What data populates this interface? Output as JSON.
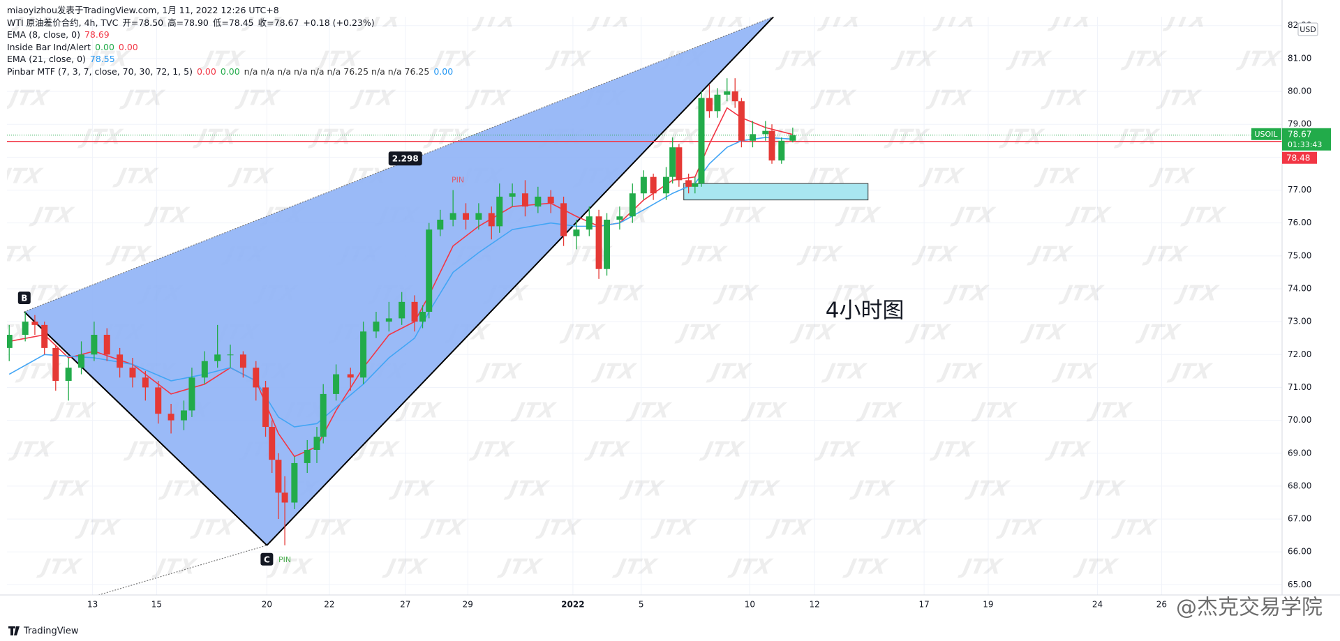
{
  "header": {
    "source": "miaoyizhou发表于TradingView.com, 1月 11, 2022 12:26 UTC+8",
    "symbol": "WTI 原油差价合约, 4h, TVC",
    "ohlc": [
      "开=78.50",
      "高=78.90",
      "低=78.45",
      "收=78.67",
      "+0.18 (+0.23%)"
    ]
  },
  "indicators": [
    {
      "label": "EMA (8, close, 0)",
      "values": [
        {
          "text": "78.69",
          "color": "#f23645"
        }
      ]
    },
    {
      "label": "Inside Bar Ind/Alert",
      "values": [
        {
          "text": "0.00",
          "color": "#22ab4a"
        },
        {
          "text": "0.00",
          "color": "#f23645"
        }
      ]
    },
    {
      "label": "EMA (21, close, 0)",
      "values": [
        {
          "text": "78.55",
          "color": "#2196f3"
        }
      ]
    },
    {
      "label": "Pinbar MTF (7, 3, 7, close, 70, 30, 72, 1, 5)",
      "values": [
        {
          "text": "0.00",
          "color": "#f23645"
        },
        {
          "text": "0.00",
          "color": "#22ab4a"
        },
        {
          "text": "n/a n/a n/a n/a n/a n/a 76.25 n/a n/a 76.25",
          "color": "#333333"
        },
        {
          "text": "0.00",
          "color": "#2196f3"
        }
      ]
    }
  ],
  "chart_data": {
    "type": "candlestick",
    "up_color": "#22ab4a",
    "down_color": "#e53935",
    "x": [
      -2.6,
      -2.1,
      -1.8,
      -1.5,
      -1.15,
      -0.75,
      -0.35,
      0.05,
      0.45,
      0.85,
      1.25,
      1.65,
      2.05,
      2.45,
      2.85,
      3.1,
      3.5,
      3.9,
      4.3,
      4.7,
      5.1,
      5.4,
      5.6,
      5.8,
      6.0,
      6.3,
      6.7,
      7.0,
      7.2,
      7.6,
      8.05,
      8.45,
      8.85,
      9.25,
      9.65,
      10.05,
      10.3,
      10.5,
      10.85,
      11.25,
      11.65,
      12.05,
      12.45,
      12.7,
      13.1,
      13.5,
      13.9,
      14.3,
      14.7,
      15.1,
      15.5,
      15.8,
      16.05,
      16.45,
      16.85,
      17.2,
      17.5,
      17.9,
      18.1,
      18.3,
      18.6,
      18.8,
      19.0,
      19.25,
      19.5,
      19.8,
      20.05,
      20.25,
      20.6,
      21.0,
      21.2,
      21.5,
      21.85
    ],
    "open": [
      72.2,
      72.6,
      73.0,
      72.9,
      72.2,
      71.2,
      71.6,
      72.0,
      72.6,
      72.0,
      71.6,
      71.3,
      71.0,
      70.2,
      70.0,
      70.3,
      71.3,
      71.8,
      72.0,
      72.0,
      71.6,
      71.0,
      69.8,
      68.8,
      67.8,
      67.5,
      68.7,
      69.1,
      69.5,
      70.8,
      71.4,
      71.3,
      72.7,
      73.0,
      73.1,
      73.6,
      73.0,
      73.3,
      75.8,
      76.1,
      76.3,
      76.1,
      76.3,
      75.9,
      76.8,
      76.9,
      76.5,
      76.8,
      76.6,
      75.6,
      75.8,
      76.2,
      74.6,
      76.1,
      76.2,
      76.9,
      77.4,
      76.9,
      77.4,
      78.3,
      77.3,
      77.1,
      77.2,
      79.8,
      79.4,
      79.9,
      80.0,
      79.7,
      78.5,
      78.7,
      78.8,
      77.9,
      78.5
    ],
    "high": [
      72.9,
      73.3,
      73.2,
      73.0,
      72.3,
      71.9,
      72.4,
      73.0,
      72.8,
      72.2,
      71.9,
      71.5,
      71.2,
      70.5,
      70.6,
      71.6,
      72.1,
      72.9,
      72.3,
      72.1,
      71.8,
      71.2,
      70.0,
      69.0,
      68.3,
      68.9,
      69.4,
      69.8,
      71.1,
      71.7,
      71.6,
      73.0,
      73.3,
      73.6,
      73.9,
      73.8,
      73.5,
      76.0,
      76.4,
      77.0,
      76.6,
      76.6,
      76.5,
      77.2,
      77.2,
      77.3,
      77.1,
      77.0,
      76.8,
      76.1,
      76.5,
      76.4,
      76.3,
      76.5,
      77.2,
      77.6,
      77.5,
      77.7,
      78.6,
      78.4,
      77.5,
      77.4,
      80.0,
      80.2,
      80.1,
      80.4,
      80.4,
      79.8,
      79.1,
      79.1,
      79.0,
      78.6,
      78.9
    ],
    "low": [
      71.8,
      72.4,
      72.6,
      72.0,
      70.9,
      70.6,
      71.4,
      71.8,
      71.8,
      71.3,
      71.0,
      70.6,
      69.9,
      69.6,
      69.7,
      70.1,
      71.1,
      71.6,
      71.6,
      71.3,
      70.6,
      69.5,
      68.4,
      67.0,
      66.2,
      67.3,
      68.4,
      68.7,
      69.3,
      70.6,
      70.9,
      71.1,
      72.5,
      72.7,
      72.9,
      72.7,
      72.8,
      73.1,
      75.6,
      75.9,
      75.8,
      75.8,
      75.5,
      75.7,
      76.5,
      76.2,
      76.3,
      76.3,
      75.3,
      75.2,
      75.6,
      74.3,
      74.4,
      75.8,
      76.0,
      76.7,
      76.7,
      76.7,
      77.2,
      77.1,
      76.9,
      76.9,
      77.1,
      79.2,
      79.2,
      79.7,
      79.5,
      78.3,
      78.3,
      78.5,
      77.8,
      77.8,
      78.45
    ],
    "close": [
      72.6,
      73.0,
      72.9,
      72.2,
      71.2,
      71.6,
      72.0,
      72.6,
      72.0,
      71.6,
      71.3,
      71.0,
      70.2,
      70.0,
      70.3,
      71.3,
      71.8,
      72.0,
      72.0,
      71.6,
      71.0,
      69.8,
      68.8,
      67.8,
      67.5,
      68.7,
      69.1,
      69.5,
      70.8,
      71.4,
      71.3,
      72.7,
      73.0,
      73.1,
      73.6,
      73.0,
      73.3,
      75.8,
      76.1,
      76.3,
      76.1,
      76.3,
      75.9,
      76.8,
      76.9,
      76.5,
      76.8,
      76.6,
      75.6,
      75.8,
      76.2,
      74.6,
      76.1,
      76.2,
      76.9,
      77.4,
      76.9,
      77.4,
      78.3,
      77.3,
      77.1,
      77.2,
      79.8,
      79.4,
      79.9,
      80.0,
      79.7,
      78.5,
      78.7,
      78.8,
      77.9,
      78.5,
      78.67
    ],
    "lines": [
      {
        "color": "#f23645",
        "x": [
          -2.6,
          -1.5,
          -0.75,
          0.05,
          1.25,
          2.45,
          3.5,
          4.3,
          5.1,
          5.8,
          6.3,
          7.0,
          7.6,
          8.45,
          9.25,
          10.05,
          10.5,
          11.25,
          12.05,
          13.1,
          14.3,
          15.1,
          15.8,
          16.45,
          17.2,
          18.1,
          18.8,
          19.25,
          19.8,
          20.25,
          21.0,
          21.85
        ],
        "values": [
          72.4,
          72.6,
          71.9,
          72.1,
          71.7,
          70.8,
          71.1,
          71.6,
          71.2,
          69.6,
          68.9,
          69.2,
          70.3,
          71.6,
          72.6,
          73.0,
          73.8,
          75.3,
          75.9,
          76.5,
          76.6,
          76.2,
          75.9,
          76.0,
          76.7,
          77.3,
          77.4,
          78.4,
          79.5,
          79.2,
          78.9,
          78.69
        ]
      },
      {
        "color": "#42a5f5",
        "x": [
          -2.6,
          -1.5,
          0.05,
          1.25,
          2.45,
          3.5,
          4.3,
          5.1,
          5.8,
          6.3,
          7.0,
          7.6,
          8.45,
          9.25,
          10.05,
          10.5,
          11.25,
          12.05,
          13.1,
          14.3,
          15.1,
          15.8,
          16.45,
          17.2,
          18.1,
          18.8,
          19.25,
          19.8,
          20.25,
          21.0,
          21.85
        ],
        "values": [
          71.4,
          72.0,
          71.9,
          71.7,
          71.2,
          71.4,
          71.6,
          71.2,
          70.1,
          69.8,
          69.9,
          70.4,
          71.1,
          71.9,
          72.5,
          73.3,
          74.5,
          75.1,
          75.8,
          76.0,
          75.9,
          75.9,
          76.0,
          76.4,
          76.9,
          77.2,
          77.8,
          78.3,
          78.5,
          78.6,
          78.55
        ]
      }
    ],
    "xlim": [
      -2.67,
      37.12
    ],
    "xticks": [
      {
        "value": 0,
        "label": "13"
      },
      {
        "value": 2,
        "label": "15"
      },
      {
        "value": 5.44,
        "label": "20"
      },
      {
        "value": 7.39,
        "label": "22"
      },
      {
        "value": 9.76,
        "label": "27"
      },
      {
        "value": 11.71,
        "label": "29"
      },
      {
        "value": 14.99,
        "label": "2022"
      },
      {
        "value": 17.12,
        "label": "5"
      },
      {
        "value": 20.51,
        "label": "10"
      },
      {
        "value": 22.53,
        "label": "12"
      },
      {
        "value": 25.95,
        "label": "17"
      },
      {
        "value": 27.95,
        "label": "19"
      },
      {
        "value": 31.36,
        "label": "24"
      },
      {
        "value": 33.36,
        "label": "26"
      }
    ],
    "ylim": [
      64.69,
      82.27
    ],
    "yticks": [
      {
        "value": 65,
        "label": "65.00"
      },
      {
        "value": 66,
        "label": "66.00"
      },
      {
        "value": 67,
        "label": "67.00"
      },
      {
        "value": 68,
        "label": "68.00"
      },
      {
        "value": 69,
        "label": "69.00"
      },
      {
        "value": 70,
        "label": "70.00"
      },
      {
        "value": 71,
        "label": "71.00"
      },
      {
        "value": 72,
        "label": "72.00"
      },
      {
        "value": 73,
        "label": "73.00"
      },
      {
        "value": 74,
        "label": "74.00"
      },
      {
        "value": 75,
        "label": "75.00"
      },
      {
        "value": 76,
        "label": "76.00"
      },
      {
        "value": 77,
        "label": "77.00"
      },
      {
        "value": 78,
        "label": "78.00"
      },
      {
        "value": 79,
        "label": "79.00"
      },
      {
        "value": 80,
        "label": "80.00"
      },
      {
        "value": 81,
        "label": "81.00"
      },
      {
        "value": 82,
        "label": "82.00"
      }
    ],
    "grid": true,
    "currency": "USD",
    "price_tags": [
      {
        "name": "USOIL",
        "value": 78.67,
        "label": "78.67",
        "countdown": "01:33:43",
        "color": "#22ab4a"
      },
      {
        "value": 78.48,
        "label": "78.48",
        "color": "#f23645"
      }
    ],
    "channel": {
      "b": [
        -2.13,
        73.3
      ],
      "c": [
        5.44,
        66.2
      ],
      "top": [
        21.25,
        82.27
      ],
      "tail": [
        0.19,
        64.69
      ],
      "b_label": "B",
      "c_label": "C",
      "fill": "#8fb2f6"
    },
    "measure": {
      "label": "2.298",
      "x": 9.76,
      "y": 77.96
    },
    "zone": {
      "x": [
        18.45,
        24.2
      ],
      "y": [
        76.7,
        77.2
      ],
      "fill": "#a8e6f0"
    },
    "pins": [
      {
        "text": "PIN",
        "x": 11.4,
        "y": 77.3,
        "color": "#e05a6a"
      },
      {
        "text": "PIN",
        "x": 6.0,
        "y": 65.75,
        "color": "#4caf50"
      }
    ],
    "annotation": {
      "text": "4小时图",
      "x": 24.1,
      "y": 73.3
    }
  },
  "footer": {
    "brand": "TradingView"
  },
  "watermark": "JTX",
  "signature": "@杰克交易学院"
}
